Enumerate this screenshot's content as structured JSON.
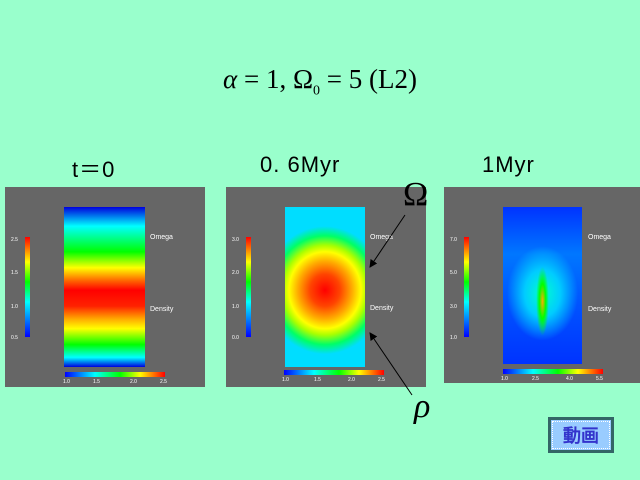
{
  "title": {
    "alpha": "α",
    "rest": " = 1,  Ω",
    "sub": "0",
    "tail": " = 5 (L2)"
  },
  "panels": [
    {
      "time": "t＝0",
      "omega_label": "Omega",
      "density_label": "Density",
      "vticks": [
        "2.5",
        "1.5",
        "1.0",
        "0.5"
      ],
      "hticks": [
        "1.0",
        "1.5",
        "2.0",
        "2.5"
      ]
    },
    {
      "time": "0. 6Myr",
      "omega_label": "Omega",
      "density_label": "Density",
      "vticks": [
        "3.0",
        "2.0",
        "1.0",
        "0.0"
      ],
      "hticks": [
        "1.0",
        "1.5",
        "2.0",
        "2.5"
      ]
    },
    {
      "time": "1Myr",
      "omega_label": "Omega",
      "density_label": "Density",
      "vticks": [
        "7.0",
        "5.0",
        "3.0",
        "1.0"
      ],
      "hticks": [
        "1.0",
        "2.5",
        "4.0",
        "5.5"
      ]
    }
  ],
  "annotations": {
    "omega": "Ω",
    "rho": "ρ"
  },
  "button": {
    "label": "動画"
  }
}
